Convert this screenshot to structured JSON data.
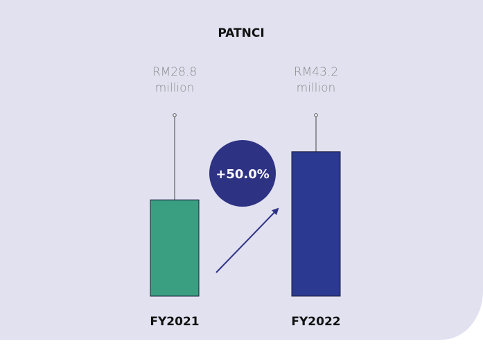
{
  "chart_data": {
    "type": "bar",
    "title": "PATNCI",
    "categories": [
      "FY2021",
      "FY2022"
    ],
    "values": [
      28.8,
      43.2
    ],
    "value_labels": [
      "RM28.8 million",
      "RM43.2 million"
    ],
    "colors": [
      "#3a9f80",
      "#2b3990"
    ],
    "annotation": "+50.0%"
  }
}
